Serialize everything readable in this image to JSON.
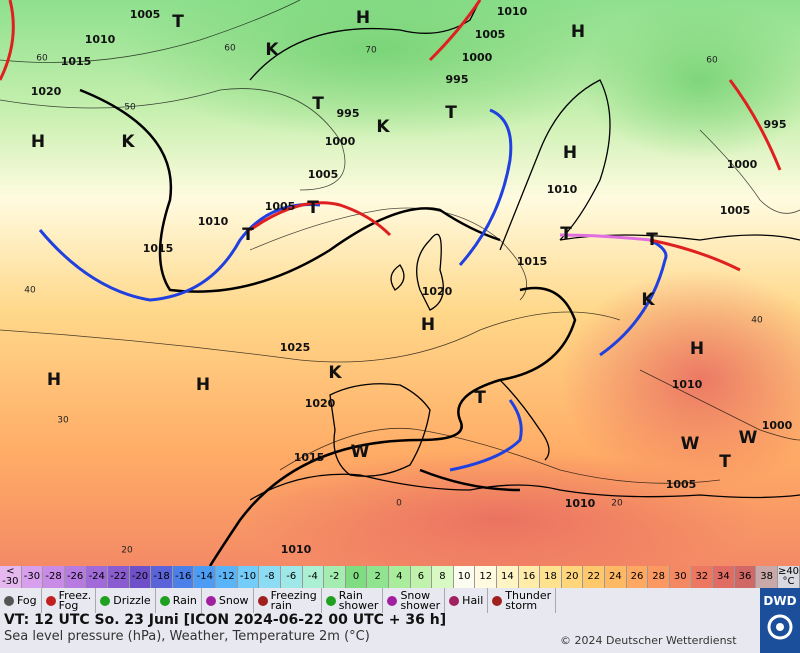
{
  "map": {
    "pressure_labels": [
      "1005",
      "1010",
      "1015",
      "1020",
      "1010",
      "1005",
      "1000",
      "995",
      "995",
      "1000",
      "1005",
      "1005",
      "1010",
      "1015",
      "1010",
      "1015",
      "1020",
      "1025",
      "1020",
      "1015",
      "1010",
      "1010",
      "1005",
      "1000",
      "1010",
      "1005",
      "1000",
      "995"
    ],
    "centers": [
      "H",
      "H",
      "T",
      "T",
      "T",
      "H",
      "K",
      "K",
      "K",
      "T",
      "T",
      "H",
      "T",
      "T",
      "H",
      "H",
      "H",
      "K",
      "T",
      "H",
      "K",
      "T",
      "W",
      "W",
      "W"
    ],
    "grid_labels": [
      "60",
      "50",
      "40",
      "30",
      "20",
      "70",
      "60",
      "60",
      "40",
      "0",
      "20"
    ]
  },
  "color_scale": [
    {
      "label": "<\n-30",
      "color": "#e6b8f0"
    },
    {
      "label": "-30",
      "color": "#d8a0ec"
    },
    {
      "label": "-28",
      "color": "#c88ce6"
    },
    {
      "label": "-26",
      "color": "#b67ae0"
    },
    {
      "label": "-24",
      "color": "#a06ad8"
    },
    {
      "label": "-22",
      "color": "#8a5cd0"
    },
    {
      "label": "-20",
      "color": "#7050c8"
    },
    {
      "label": "-18",
      "color": "#5a64d8"
    },
    {
      "label": "-16",
      "color": "#4a80e8"
    },
    {
      "label": "-14",
      "color": "#4c9cf4"
    },
    {
      "label": "-12",
      "color": "#5cb4f8"
    },
    {
      "label": "-10",
      "color": "#74ccf8"
    },
    {
      "label": "-8",
      "color": "#8cdcf4"
    },
    {
      "label": "-6",
      "color": "#9ee8e8"
    },
    {
      "label": "-4",
      "color": "#acf0d4"
    },
    {
      "label": "-2",
      "color": "#a4ecb0"
    },
    {
      "label": "0",
      "color": "#80dc80"
    },
    {
      "label": "2",
      "color": "#90e490"
    },
    {
      "label": "4",
      "color": "#a8ec9c"
    },
    {
      "label": "6",
      "color": "#c0f2ac"
    },
    {
      "label": "8",
      "color": "#d8f8c4"
    },
    {
      "label": "10",
      "color": "#fcfcf0"
    },
    {
      "label": "12",
      "color": "#fffae0"
    },
    {
      "label": "14",
      "color": "#fff4c4"
    },
    {
      "label": "16",
      "color": "#ffeca8"
    },
    {
      "label": "18",
      "color": "#ffe290"
    },
    {
      "label": "20",
      "color": "#ffd67c"
    },
    {
      "label": "22",
      "color": "#ffc86c"
    },
    {
      "label": "24",
      "color": "#ffb864"
    },
    {
      "label": "26",
      "color": "#ffa862"
    },
    {
      "label": "28",
      "color": "#fc9862"
    },
    {
      "label": "30",
      "color": "#f48862"
    },
    {
      "label": "32",
      "color": "#ec7862"
    },
    {
      "label": "34",
      "color": "#e06c64"
    },
    {
      "label": "36",
      "color": "#d06866"
    },
    {
      "label": "38",
      "color": "#c8a8a8"
    },
    {
      "label": "≥40\n°C",
      "color": "#d8d8e0"
    }
  ],
  "weather_legend": [
    {
      "label": "Fog",
      "color": "#555"
    },
    {
      "label": "Freez.\nFog",
      "color": "#c02020"
    },
    {
      "label": "Drizzle",
      "color": "#20a020"
    },
    {
      "label": "Rain",
      "color": "#20a020"
    },
    {
      "label": "Snow",
      "color": "#a020a0"
    },
    {
      "label": "Freezing\nrain",
      "color": "#a02020"
    },
    {
      "label": "Rain\nshower",
      "color": "#20a020"
    },
    {
      "label": "Snow\nshower",
      "color": "#a020a0"
    },
    {
      "label": "Hail",
      "color": "#a02060"
    },
    {
      "label": "Thunder\nstorm",
      "color": "#a02020"
    }
  ],
  "footer": {
    "valid_time": "VT: 12 UTC So.  23 Juni [ICON 2024-06-22  00 UTC + 36 h]",
    "description": "Sea level pressure (hPa), Weather, Temperature 2m (°C)",
    "copyright": "© 2024 Deutscher Wetterdienst",
    "logo": "DWD"
  }
}
